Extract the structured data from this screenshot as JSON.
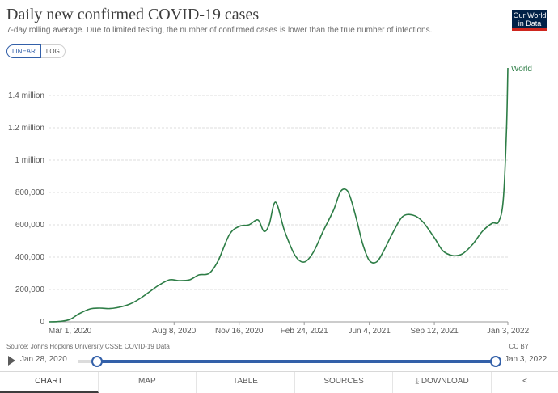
{
  "header": {
    "title": "Daily new confirmed COVID-19 cases",
    "subtitle": "7-day rolling average. Due to limited testing, the number of confirmed cases is lower than the true number of infections.",
    "logo_line1": "Our World",
    "logo_line2": "in Data"
  },
  "scale_toggle": {
    "linear": "LINEAR",
    "log": "LOG",
    "selected": "LINEAR"
  },
  "colors": {
    "series": "#2d7d46",
    "accent": "#3360a9",
    "grid": "#dddddd",
    "logo_bg": "#002147",
    "logo_bar": "#ce261e"
  },
  "chart_data": {
    "type": "line",
    "title": "Daily new confirmed COVID-19 cases",
    "ylim": [
      0,
      1600000
    ],
    "y_ticks": [
      {
        "value": 0,
        "label": "0"
      },
      {
        "value": 200000,
        "label": "200,000"
      },
      {
        "value": 400000,
        "label": "400,000"
      },
      {
        "value": 600000,
        "label": "600,000"
      },
      {
        "value": 800000,
        "label": "800,000"
      },
      {
        "value": 1000000,
        "label": "1 million"
      },
      {
        "value": 1200000,
        "label": "1.2 million"
      },
      {
        "value": 1400000,
        "label": "1.4 million"
      }
    ],
    "x_range": [
      "2020-01-28",
      "2022-01-03"
    ],
    "x_ticks": [
      {
        "date": "2020-03-01",
        "label": "Mar 1, 2020"
      },
      {
        "date": "2020-08-08",
        "label": "Aug 8, 2020"
      },
      {
        "date": "2020-11-16",
        "label": "Nov 16, 2020"
      },
      {
        "date": "2021-02-24",
        "label": "Feb 24, 2021"
      },
      {
        "date": "2021-06-04",
        "label": "Jun 4, 2021"
      },
      {
        "date": "2021-09-12",
        "label": "Sep 12, 2021"
      },
      {
        "date": "2022-01-03",
        "label": "Jan 3, 2022"
      }
    ],
    "grid": true,
    "series": [
      {
        "name": "World",
        "x": [
          "2020-01-28",
          "2020-02-15",
          "2020-03-01",
          "2020-03-15",
          "2020-04-01",
          "2020-04-15",
          "2020-05-01",
          "2020-05-15",
          "2020-06-01",
          "2020-06-15",
          "2020-07-01",
          "2020-07-15",
          "2020-08-01",
          "2020-08-15",
          "2020-09-01",
          "2020-09-15",
          "2020-10-01",
          "2020-10-15",
          "2020-11-01",
          "2020-11-16",
          "2020-12-01",
          "2020-12-15",
          "2020-12-24",
          "2021-01-01",
          "2021-01-11",
          "2021-01-25",
          "2021-02-10",
          "2021-02-24",
          "2021-03-10",
          "2021-03-25",
          "2021-04-10",
          "2021-04-20",
          "2021-04-28",
          "2021-05-05",
          "2021-05-15",
          "2021-05-25",
          "2021-06-04",
          "2021-06-15",
          "2021-06-25",
          "2021-07-10",
          "2021-07-25",
          "2021-08-10",
          "2021-08-25",
          "2021-09-12",
          "2021-09-25",
          "2021-10-10",
          "2021-10-25",
          "2021-11-10",
          "2021-11-25",
          "2021-12-10",
          "2021-12-20",
          "2021-12-27",
          "2022-01-01",
          "2022-01-03"
        ],
        "y": [
          0,
          3000,
          15000,
          50000,
          80000,
          85000,
          82000,
          90000,
          110000,
          140000,
          185000,
          225000,
          260000,
          255000,
          260000,
          290000,
          300000,
          380000,
          540000,
          590000,
          600000,
          630000,
          560000,
          600000,
          740000,
          560000,
          410000,
          370000,
          430000,
          560000,
          690000,
          800000,
          820000,
          780000,
          640000,
          480000,
          380000,
          370000,
          430000,
          550000,
          650000,
          660000,
          620000,
          520000,
          440000,
          410000,
          420000,
          480000,
          560000,
          610000,
          620000,
          760000,
          1200000,
          1570000
        ]
      }
    ],
    "end_label": "World"
  },
  "footer": {
    "source": "Source: Johns Hopkins University CSSE COVID-19 Data",
    "license": "CC BY"
  },
  "timeline": {
    "start_label": "Jan 28, 2020",
    "end_label": "Jan 3, 2022"
  },
  "tabs": [
    {
      "label": "CHART",
      "active": true
    },
    {
      "label": "MAP",
      "active": false
    },
    {
      "label": "TABLE",
      "active": false
    },
    {
      "label": "SOURCES",
      "active": false
    },
    {
      "label": "DOWNLOAD",
      "active": false
    }
  ]
}
